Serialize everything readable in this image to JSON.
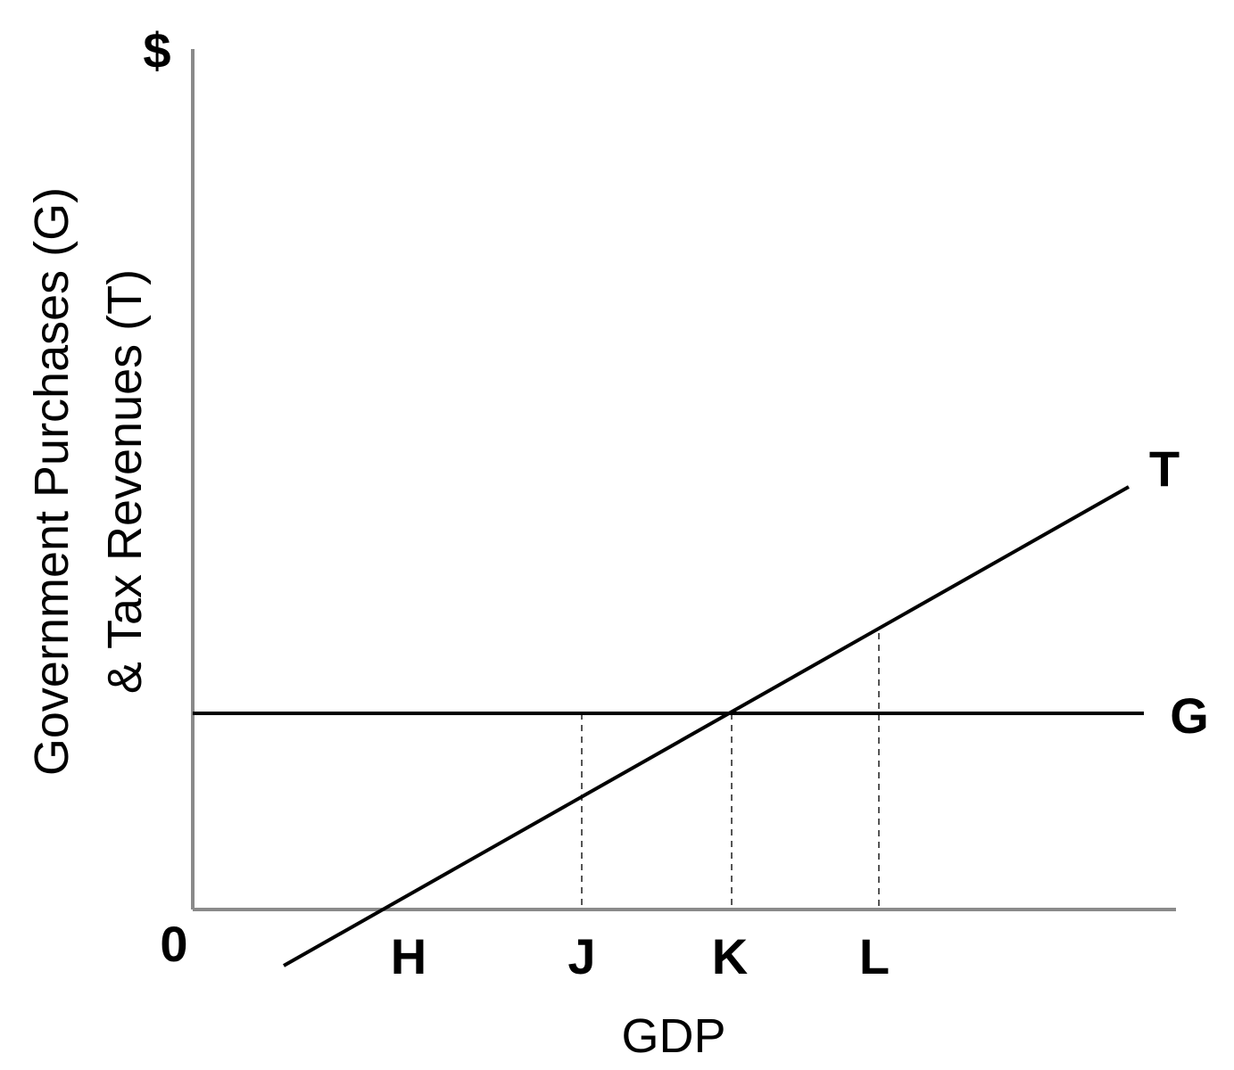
{
  "y_unit_label": "$",
  "y_axis_title": {
    "line1": "Government Purchases (G)",
    "line2": "& Tax Revenues (T)"
  },
  "x_axis_title": "GDP",
  "origin_label": "0",
  "tick_labels": [
    "H",
    "J",
    "K",
    "L"
  ],
  "curve_labels": {
    "tax": "T",
    "government": "G"
  },
  "colors": {
    "axis": "#8a8a8a",
    "curve": "#000000",
    "guide": "#555555"
  }
}
